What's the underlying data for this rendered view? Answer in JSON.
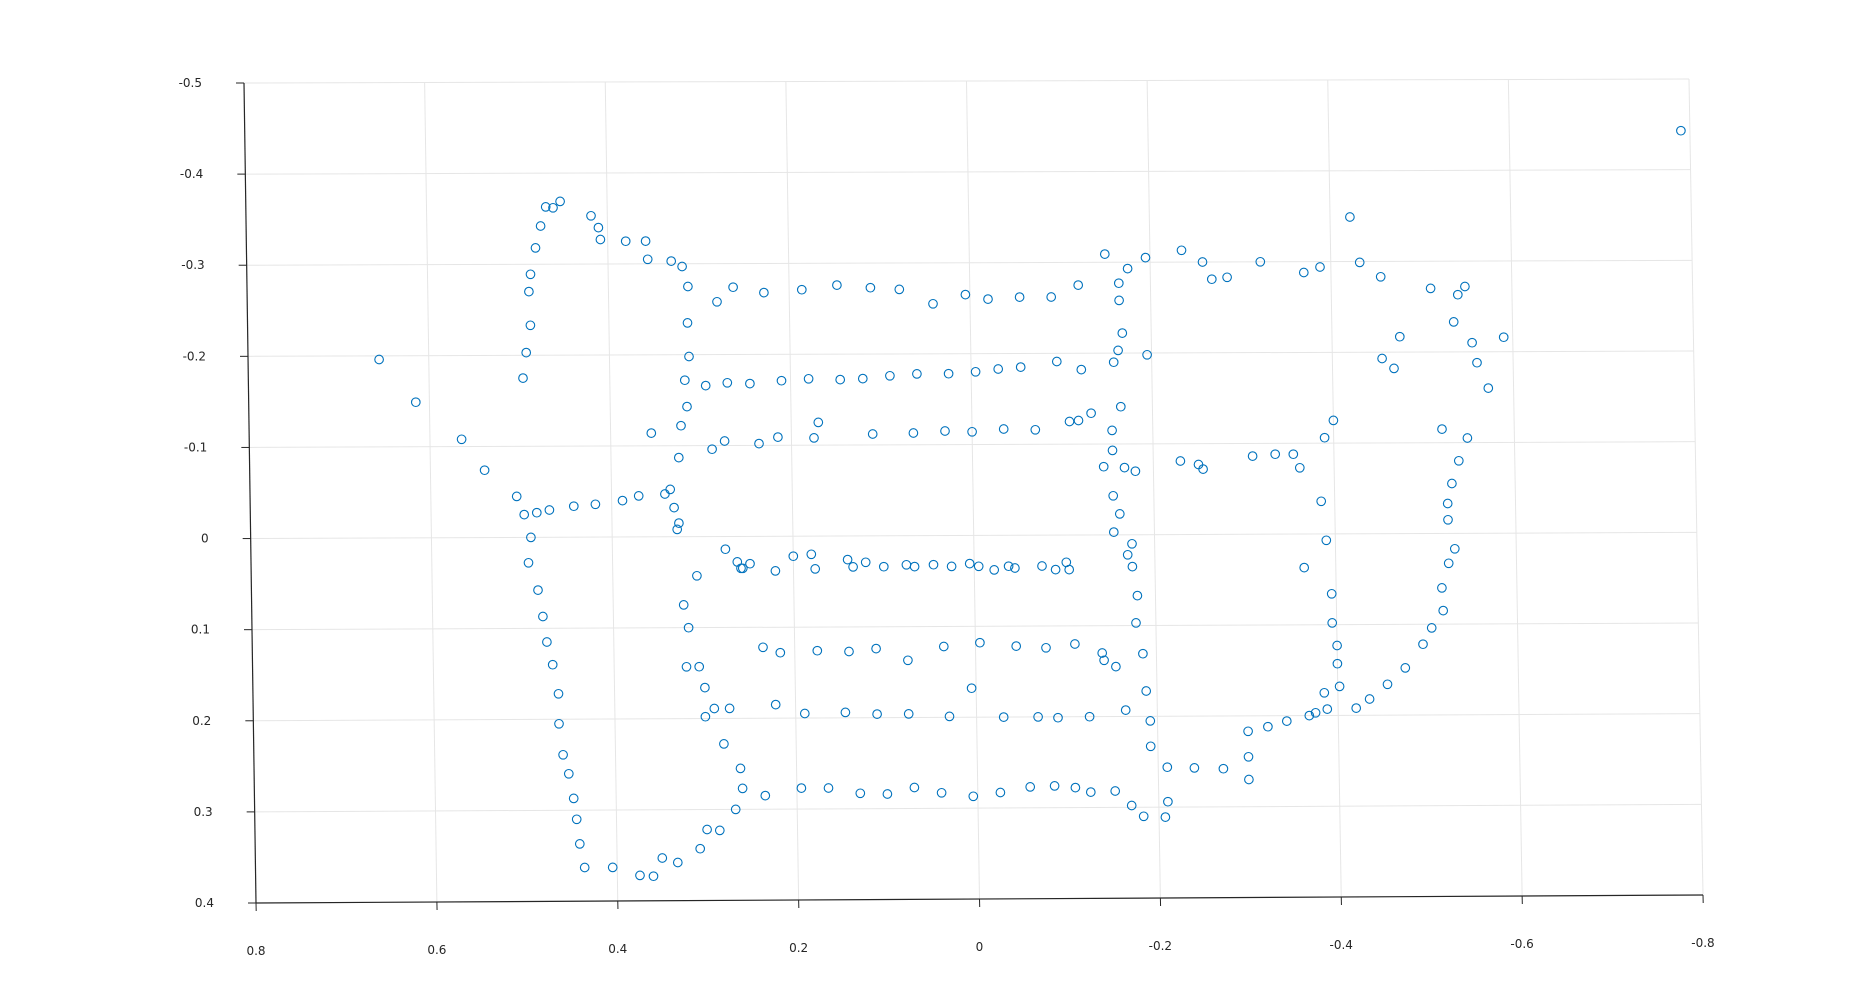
{
  "chart_data": {
    "type": "scatter",
    "title": "",
    "xlabel": "",
    "ylabel": "",
    "xlim": [
      0.8,
      -0.8
    ],
    "ylim": [
      -0.5,
      0.4
    ],
    "y_reversed": true,
    "x_reversed": true,
    "grid": true,
    "marker": "circle-open",
    "colors": {
      "marker": "#0072bd",
      "grid": "#e6e6e6",
      "axis": "#262626"
    },
    "x_ticks": [
      "0.8",
      "0.6",
      "0.4",
      "0.2",
      "0",
      "-0.2",
      "-0.4",
      "-0.6",
      "-0.8"
    ],
    "y_ticks": [
      "-0.5",
      "-0.4",
      "-0.3",
      "-0.2",
      "-0.1",
      "0",
      "0.1",
      "0.2",
      "0.3",
      "0.4"
    ],
    "points": [
      [
        0.655,
        -0.196
      ],
      [
        0.615,
        -0.149
      ],
      [
        0.565,
        -0.108
      ],
      [
        0.54,
        -0.074
      ],
      [
        0.505,
        -0.045
      ],
      [
        0.497,
        -0.025
      ],
      [
        0.49,
        0.0
      ],
      [
        0.493,
        0.028
      ],
      [
        0.483,
        0.058
      ],
      [
        0.478,
        0.087
      ],
      [
        0.474,
        0.115
      ],
      [
        0.468,
        0.14
      ],
      [
        0.462,
        0.172
      ],
      [
        0.462,
        0.205
      ],
      [
        0.458,
        0.239
      ],
      [
        0.452,
        0.26
      ],
      [
        0.447,
        0.287
      ],
      [
        0.444,
        0.31
      ],
      [
        0.441,
        0.337
      ],
      [
        0.436,
        0.363
      ],
      [
        0.405,
        0.363
      ],
      [
        0.375,
        0.372
      ],
      [
        0.36,
        0.373
      ],
      [
        0.35,
        0.353
      ],
      [
        0.333,
        0.358
      ],
      [
        0.308,
        0.343
      ],
      [
        0.3,
        0.322
      ],
      [
        0.286,
        0.323
      ],
      [
        0.268,
        0.3
      ],
      [
        0.26,
        0.277
      ],
      [
        0.262,
        0.255
      ],
      [
        0.28,
        0.228
      ],
      [
        0.29,
        0.189
      ],
      [
        0.273,
        0.189
      ],
      [
        0.3,
        0.198
      ],
      [
        0.3,
        0.166
      ],
      [
        0.306,
        0.143
      ],
      [
        0.32,
        0.143
      ],
      [
        0.317,
        0.1
      ],
      [
        0.322,
        0.075
      ],
      [
        0.307,
        0.043
      ],
      [
        0.275,
        0.014
      ],
      [
        0.262,
        0.028
      ],
      [
        0.256,
        0.035
      ],
      [
        0.248,
        0.03
      ],
      [
        0.483,
        -0.027
      ],
      [
        0.469,
        -0.03
      ],
      [
        0.442,
        -0.034
      ],
      [
        0.418,
        -0.036
      ],
      [
        0.388,
        -0.04
      ],
      [
        0.37,
        -0.045
      ],
      [
        0.341,
        -0.047
      ],
      [
        0.335,
        -0.052
      ],
      [
        0.331,
        -0.032
      ],
      [
        0.326,
        -0.015
      ],
      [
        0.328,
        -0.008
      ],
      [
        0.496,
        -0.175
      ],
      [
        0.492,
        -0.203
      ],
      [
        0.487,
        -0.233
      ],
      [
        0.488,
        -0.27
      ],
      [
        0.486,
        -0.289
      ],
      [
        0.48,
        -0.318
      ],
      [
        0.474,
        -0.342
      ],
      [
        0.468,
        -0.363
      ],
      [
        0.46,
        -0.362
      ],
      [
        0.452,
        -0.369
      ],
      [
        0.418,
        -0.353
      ],
      [
        0.41,
        -0.34
      ],
      [
        0.408,
        -0.327
      ],
      [
        0.38,
        -0.325
      ],
      [
        0.358,
        -0.325
      ],
      [
        0.356,
        -0.305
      ],
      [
        0.33,
        -0.303
      ],
      [
        0.318,
        -0.297
      ],
      [
        0.312,
        -0.275
      ],
      [
        0.313,
        -0.235
      ],
      [
        0.312,
        -0.198
      ],
      [
        0.317,
        -0.172
      ],
      [
        0.315,
        -0.143
      ],
      [
        0.322,
        -0.122
      ],
      [
        0.355,
        -0.114
      ],
      [
        0.325,
        -0.087
      ],
      [
        0.28,
        -0.258
      ],
      [
        0.262,
        -0.274
      ],
      [
        0.228,
        -0.268
      ],
      [
        0.186,
        -0.271
      ],
      [
        0.147,
        -0.276
      ],
      [
        0.11,
        -0.273
      ],
      [
        0.078,
        -0.271
      ],
      [
        0.041,
        -0.255
      ],
      [
        0.005,
        -0.265
      ],
      [
        -0.02,
        -0.26
      ],
      [
        -0.055,
        -0.262
      ],
      [
        -0.09,
        -0.262
      ],
      [
        -0.12,
        -0.275
      ],
      [
        0.294,
        -0.166
      ],
      [
        0.27,
        -0.169
      ],
      [
        0.245,
        -0.168
      ],
      [
        0.21,
        -0.171
      ],
      [
        0.18,
        -0.173
      ],
      [
        0.145,
        -0.172
      ],
      [
        0.12,
        -0.173
      ],
      [
        0.09,
        -0.176
      ],
      [
        0.06,
        -0.178
      ],
      [
        0.025,
        -0.178
      ],
      [
        -0.005,
        -0.18
      ],
      [
        -0.03,
        -0.183
      ],
      [
        -0.055,
        -0.185
      ],
      [
        -0.095,
        -0.191
      ],
      [
        -0.122,
        -0.182
      ],
      [
        0.288,
        -0.096
      ],
      [
        0.274,
        -0.105
      ],
      [
        0.236,
        -0.102
      ],
      [
        0.215,
        -0.109
      ],
      [
        0.175,
        -0.108
      ],
      [
        0.17,
        -0.125
      ],
      [
        0.11,
        -0.112
      ],
      [
        0.065,
        -0.113
      ],
      [
        0.03,
        -0.115
      ],
      [
        -0.0,
        -0.114
      ],
      [
        -0.035,
        -0.117
      ],
      [
        -0.07,
        -0.116
      ],
      [
        -0.108,
        -0.125
      ],
      [
        -0.118,
        -0.126
      ],
      [
        -0.132,
        -0.134
      ],
      [
        0.2,
        0.022
      ],
      [
        0.18,
        0.02
      ],
      [
        0.14,
        0.026
      ],
      [
        0.12,
        0.029
      ],
      [
        0.075,
        0.032
      ],
      [
        0.045,
        0.032
      ],
      [
        0.005,
        0.031
      ],
      [
        -0.022,
        0.038
      ],
      [
        -0.045,
        0.036
      ],
      [
        -0.09,
        0.038
      ],
      [
        -0.105,
        0.038
      ],
      [
        0.258,
        0.035
      ],
      [
        0.22,
        0.038
      ],
      [
        0.176,
        0.036
      ],
      [
        0.134,
        0.034
      ],
      [
        0.1,
        0.034
      ],
      [
        0.066,
        0.034
      ],
      [
        0.025,
        0.034
      ],
      [
        -0.005,
        0.034
      ],
      [
        -0.038,
        0.034
      ],
      [
        -0.075,
        0.034
      ],
      [
        -0.102,
        0.03
      ],
      [
        0.235,
        0.122
      ],
      [
        0.216,
        0.128
      ],
      [
        0.175,
        0.126
      ],
      [
        0.14,
        0.127
      ],
      [
        0.11,
        0.124
      ],
      [
        0.075,
        0.137
      ],
      [
        0.035,
        0.122
      ],
      [
        -0.005,
        0.118
      ],
      [
        -0.045,
        0.122
      ],
      [
        -0.078,
        0.124
      ],
      [
        -0.11,
        0.12
      ],
      [
        -0.14,
        0.13
      ],
      [
        -0.142,
        0.138
      ],
      [
        -0.155,
        0.145
      ],
      [
        0.222,
        0.185
      ],
      [
        0.19,
        0.195
      ],
      [
        0.145,
        0.194
      ],
      [
        0.11,
        0.196
      ],
      [
        0.075,
        0.196
      ],
      [
        0.03,
        0.199
      ],
      [
        0.005,
        0.168
      ],
      [
        -0.03,
        0.2
      ],
      [
        -0.068,
        0.2
      ],
      [
        -0.09,
        0.201
      ],
      [
        -0.125,
        0.2
      ],
      [
        0.235,
        0.285
      ],
      [
        0.195,
        0.277
      ],
      [
        0.165,
        0.277
      ],
      [
        0.13,
        0.283
      ],
      [
        0.1,
        0.284
      ],
      [
        0.07,
        0.277
      ],
      [
        0.04,
        0.283
      ],
      [
        0.005,
        0.287
      ],
      [
        -0.025,
        0.283
      ],
      [
        -0.058,
        0.277
      ],
      [
        -0.085,
        0.276
      ],
      [
        -0.108,
        0.278
      ],
      [
        -0.125,
        0.283
      ],
      [
        -0.152,
        0.282
      ],
      [
        -0.15,
        -0.309
      ],
      [
        -0.175,
        -0.293
      ],
      [
        -0.165,
        -0.277
      ],
      [
        -0.165,
        -0.258
      ],
      [
        -0.168,
        -0.222
      ],
      [
        -0.163,
        -0.203
      ],
      [
        -0.158,
        -0.19
      ],
      [
        -0.165,
        -0.141
      ],
      [
        -0.155,
        -0.115
      ],
      [
        -0.155,
        -0.093
      ],
      [
        -0.168,
        -0.074
      ],
      [
        -0.18,
        -0.07
      ],
      [
        -0.145,
        -0.075
      ],
      [
        -0.155,
        -0.043
      ],
      [
        -0.162,
        -0.023
      ],
      [
        -0.155,
        -0.003
      ],
      [
        -0.175,
        0.01
      ],
      [
        -0.17,
        0.022
      ],
      [
        -0.175,
        0.035
      ],
      [
        -0.18,
        0.067
      ],
      [
        -0.178,
        0.097
      ],
      [
        -0.185,
        0.131
      ],
      [
        -0.188,
        0.172
      ],
      [
        -0.165,
        0.193
      ],
      [
        -0.192,
        0.205
      ],
      [
        -0.192,
        0.233
      ],
      [
        -0.21,
        0.256
      ],
      [
        -0.17,
        0.298
      ],
      [
        -0.183,
        0.31
      ],
      [
        -0.207,
        0.311
      ],
      [
        -0.21,
        0.294
      ],
      [
        -0.195,
        -0.305
      ],
      [
        -0.235,
        -0.313
      ],
      [
        -0.258,
        -0.3
      ],
      [
        -0.268,
        -0.281
      ],
      [
        -0.285,
        -0.283
      ],
      [
        -0.322,
        -0.3
      ],
      [
        -0.37,
        -0.288
      ],
      [
        -0.388,
        -0.294
      ],
      [
        -0.422,
        -0.349
      ],
      [
        -0.432,
        -0.299
      ],
      [
        -0.455,
        -0.283
      ],
      [
        -0.51,
        -0.27
      ],
      [
        -0.54,
        -0.263
      ],
      [
        -0.548,
        -0.272
      ],
      [
        -0.535,
        -0.233
      ],
      [
        -0.475,
        -0.217
      ],
      [
        -0.455,
        -0.193
      ],
      [
        -0.468,
        -0.182
      ],
      [
        -0.555,
        -0.21
      ],
      [
        -0.56,
        -0.188
      ],
      [
        -0.59,
        -0.216
      ],
      [
        -0.572,
        -0.16
      ],
      [
        -0.79,
        -0.443
      ],
      [
        -0.195,
        -0.198
      ],
      [
        -0.4,
        -0.125
      ],
      [
        -0.39,
        -0.106
      ],
      [
        -0.23,
        -0.081
      ],
      [
        -0.25,
        -0.077
      ],
      [
        -0.255,
        -0.072
      ],
      [
        -0.31,
        -0.086
      ],
      [
        -0.335,
        -0.088
      ],
      [
        -0.355,
        -0.088
      ],
      [
        -0.362,
        -0.073
      ],
      [
        -0.385,
        -0.036
      ],
      [
        -0.39,
        0.007
      ],
      [
        -0.365,
        0.037
      ],
      [
        -0.395,
        0.066
      ],
      [
        -0.395,
        0.098
      ],
      [
        -0.4,
        0.123
      ],
      [
        -0.4,
        0.143
      ],
      [
        -0.402,
        0.168
      ],
      [
        -0.385,
        0.175
      ],
      [
        -0.388,
        0.193
      ],
      [
        -0.375,
        0.197
      ],
      [
        -0.368,
        0.2
      ],
      [
        -0.343,
        0.206
      ],
      [
        -0.322,
        0.212
      ],
      [
        -0.3,
        0.217
      ],
      [
        -0.42,
        0.192
      ],
      [
        -0.435,
        0.182
      ],
      [
        -0.455,
        0.166
      ],
      [
        -0.475,
        0.148
      ],
      [
        -0.495,
        0.122
      ],
      [
        -0.505,
        0.104
      ],
      [
        -0.518,
        0.085
      ],
      [
        -0.517,
        0.06
      ],
      [
        -0.525,
        0.033
      ],
      [
        -0.532,
        0.017
      ],
      [
        -0.525,
        -0.015
      ],
      [
        -0.525,
        -0.033
      ],
      [
        -0.53,
        -0.055
      ],
      [
        -0.538,
        -0.08
      ],
      [
        -0.548,
        -0.105
      ],
      [
        -0.52,
        -0.115
      ],
      [
        -0.3,
        0.245
      ],
      [
        -0.3,
        0.27
      ],
      [
        -0.272,
        0.258
      ],
      [
        -0.24,
        0.257
      ]
    ]
  }
}
